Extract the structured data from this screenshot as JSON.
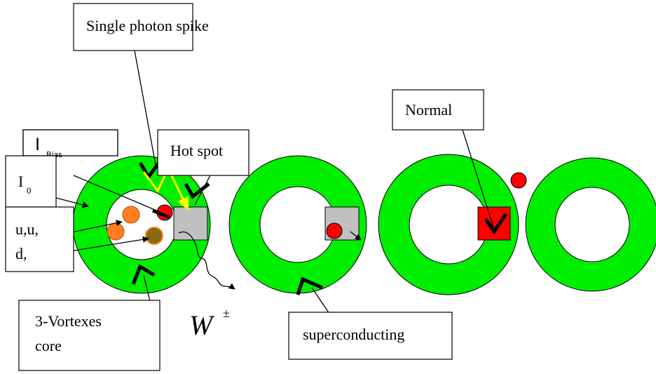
{
  "labels": {
    "photon": "Single photon spike",
    "bias_main": "I",
    "bias_sub": "Bias",
    "hotspot": "Hot spot",
    "normal": "Normal",
    "i0_main": "I",
    "i0_sub": "0",
    "quarks_1": "u,u,",
    "quarks_2": "d,",
    "vortex_1": "3-Vortexes",
    "vortex_2": "core",
    "w_main": "W",
    "w_sup": "±",
    "superconducting": "superconducting"
  }
}
